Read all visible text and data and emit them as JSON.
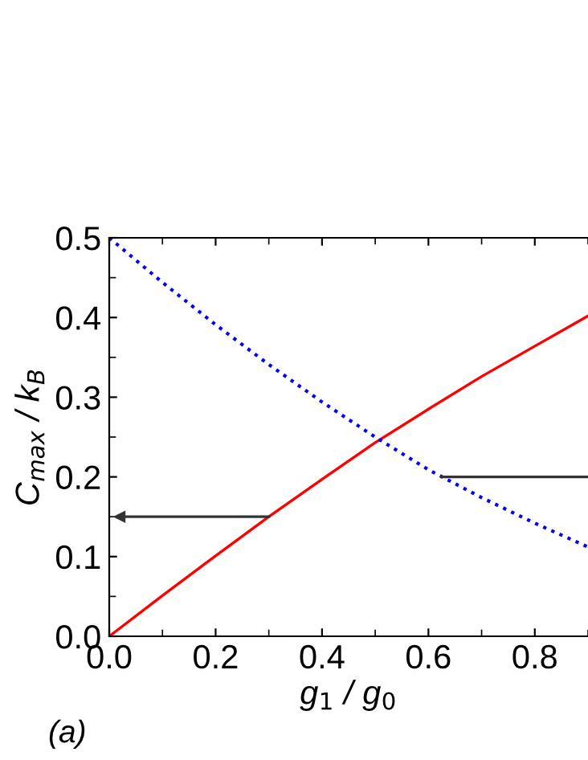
{
  "chart_data": {
    "type": "line",
    "xlabel": "g$_{1}$ / g$_{0}$",
    "ylabel": "C$_{max}$ / k$_{B}$",
    "annotations": [
      "(a)"
    ],
    "x": [
      0,
      0.1,
      0.2,
      0.3,
      0.4,
      0.5,
      0.6,
      0.7,
      0.8,
      0.9
    ],
    "series": [
      {
        "color": "#ff0000",
        "line_style": "solid",
        "values": [
          0,
          0.051,
          0.101,
          0.15,
          0.197,
          0.243,
          0.285,
          0.326,
          0.364,
          0.402
        ]
      },
      {
        "color": "#0000ff",
        "line_style": "dotted",
        "values": [
          0.5,
          0.444,
          0.391,
          0.341,
          0.294,
          0.25,
          0.209,
          0.174,
          0.142,
          0.112
        ]
      },
      {
        "color": "#333333",
        "line_style": "solid",
        "marker": "triangle",
        "x": [
          0.3,
          0.02
        ],
        "values": [
          0.15,
          0.15
        ]
      },
      {
        "color": "#333333",
        "line_style": "solid",
        "x": [
          0.625,
          0.9
        ],
        "values": [
          0.2,
          0.2
        ]
      }
    ],
    "xlim": [
      0,
      0.9
    ],
    "ylim": [
      0,
      0.5
    ],
    "xticks": [
      {
        "value": 0,
        "label": "0.0"
      },
      0.2,
      0.4,
      0.6,
      0.8
    ],
    "yticks": [
      {
        "value": 0,
        "label": "0.0"
      },
      0.1,
      0.2,
      0.3,
      0.4,
      0.5
    ],
    "grid": false,
    "legend": false
  }
}
